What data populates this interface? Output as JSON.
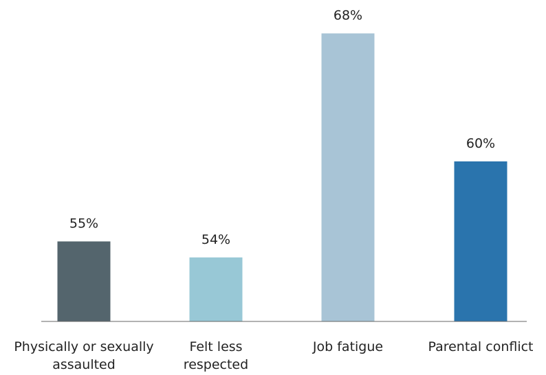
{
  "chart_data": {
    "type": "bar",
    "categories": [
      "Physically or sexually assaulted",
      "Felt less respected",
      "Job fatigue",
      "Parental conflict"
    ],
    "values": [
      55,
      54,
      68,
      60
    ],
    "value_labels": [
      "55%",
      "54%",
      "68%",
      "60%"
    ],
    "colors": [
      "#54656d",
      "#98c8d6",
      "#a8c4d6",
      "#2a74ad"
    ],
    "ylim": [
      50,
      70
    ]
  }
}
